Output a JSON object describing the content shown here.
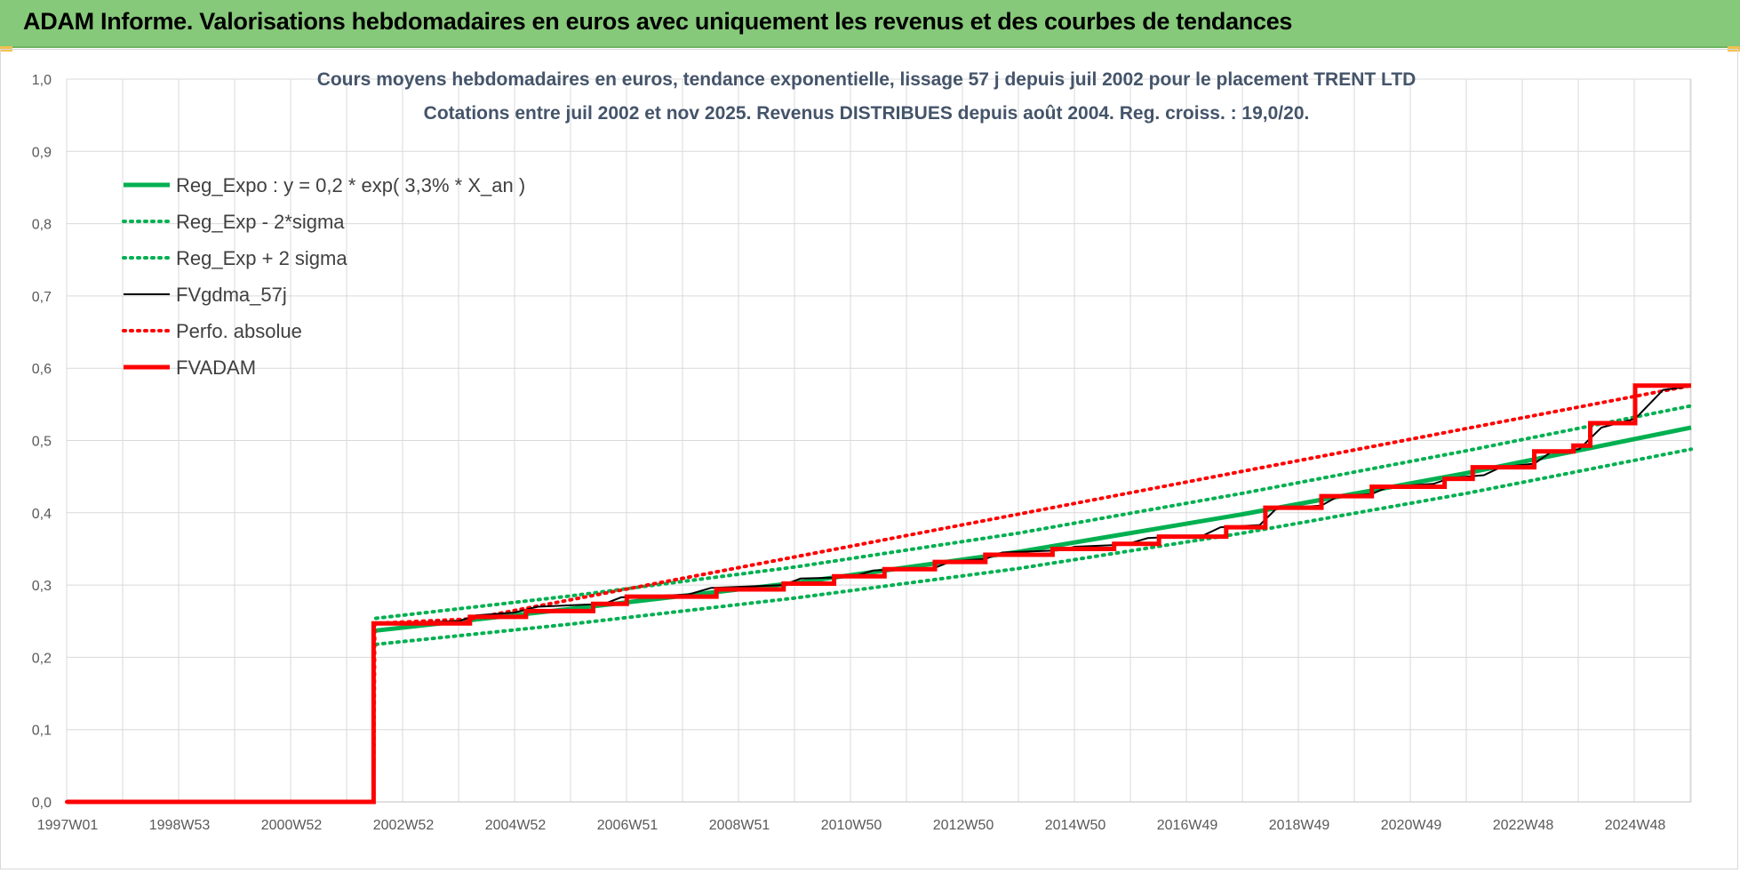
{
  "header": {
    "title": "ADAM Informe. Valorisations hebdomadaires en euros avec uniquement les revenus et des courbes de tendances"
  },
  "colors": {
    "banner": "#86c97a",
    "reg_expo": "#00b050",
    "fvgdma": "#000000",
    "fvadam": "#ff0000",
    "grid": "#d9d9d9"
  },
  "chart_data": {
    "type": "line",
    "title_line1": "Cours moyens hebdomadaires en euros, tendance exponentielle, lissage 57 j depuis juil 2002 pour le placement TRENT LTD",
    "title_line2": "Cotations entre juil 2002 et nov 2025. Revenus DISTRIBUES depuis août 2004. Reg. croiss. : 19,0/20.",
    "x_tick_labels": [
      "1997W01",
      "1998W53",
      "2000W52",
      "2002W52",
      "2004W52",
      "2006W51",
      "2008W51",
      "2010W50",
      "2012W50",
      "2014W50",
      "2016W49",
      "2018W49",
      "2020W49",
      "2022W48",
      "2024W48"
    ],
    "y_tick_labels": [
      "0,0",
      "0,1",
      "0,2",
      "0,3",
      "0,4",
      "0,5",
      "0,6",
      "0,7",
      "0,8",
      "0,9",
      "1,0"
    ],
    "ylim": [
      0,
      1
    ],
    "xlim": [
      1997.0,
      2026.0
    ],
    "grid": true,
    "legend_position": "top-left",
    "series": [
      {
        "name": "Reg_Expo : y = 0,2 * exp( 3,3% *  X_an )",
        "style": "solid-thick",
        "color": "#00b050",
        "points": [
          [
            2002.52,
            0.237
          ],
          [
            2006.0,
            0.267
          ],
          [
            2010.0,
            0.303
          ],
          [
            2014.0,
            0.346
          ],
          [
            2018.0,
            0.398
          ],
          [
            2022.0,
            0.455
          ],
          [
            2026.0,
            0.518
          ]
        ]
      },
      {
        "name": "Reg_Exp - 2*sigma",
        "style": "dotted",
        "color": "#00b050",
        "points": [
          [
            2002.52,
            0.218
          ],
          [
            2006.0,
            0.246
          ],
          [
            2010.0,
            0.282
          ],
          [
            2014.0,
            0.323
          ],
          [
            2018.0,
            0.372
          ],
          [
            2022.0,
            0.427
          ],
          [
            2026.0,
            0.488
          ]
        ]
      },
      {
        "name": "Reg_Exp + 2 sigma",
        "style": "dotted",
        "color": "#00b050",
        "points": [
          [
            2002.52,
            0.254
          ],
          [
            2006.0,
            0.285
          ],
          [
            2010.0,
            0.325
          ],
          [
            2014.0,
            0.372
          ],
          [
            2018.0,
            0.427
          ],
          [
            2022.0,
            0.486
          ],
          [
            2026.0,
            0.548
          ]
        ]
      },
      {
        "name": "FVgdma_57j",
        "style": "solid",
        "color": "#000000",
        "points": [
          [
            1997.0,
            0.0
          ],
          [
            2002.48,
            0.0
          ],
          [
            2002.5,
            0.247
          ],
          [
            2004.0,
            0.25
          ],
          [
            2004.3,
            0.258
          ],
          [
            2005.0,
            0.262
          ],
          [
            2005.4,
            0.27
          ],
          [
            2006.6,
            0.274
          ],
          [
            2006.9,
            0.283
          ],
          [
            2008.1,
            0.287
          ],
          [
            2008.5,
            0.296
          ],
          [
            2009.8,
            0.3
          ],
          [
            2010.1,
            0.309
          ],
          [
            2011.0,
            0.311
          ],
          [
            2011.4,
            0.32
          ],
          [
            2012.5,
            0.324
          ],
          [
            2012.8,
            0.333
          ],
          [
            2013.4,
            0.336
          ],
          [
            2013.7,
            0.345
          ],
          [
            2014.7,
            0.348
          ],
          [
            2015.0,
            0.353
          ],
          [
            2015.9,
            0.356
          ],
          [
            2016.3,
            0.365
          ],
          [
            2017.3,
            0.369
          ],
          [
            2017.6,
            0.38
          ],
          [
            2018.3,
            0.383
          ],
          [
            2018.6,
            0.406
          ],
          [
            2019.4,
            0.41
          ],
          [
            2019.7,
            0.423
          ],
          [
            2020.3,
            0.426
          ],
          [
            2020.6,
            0.436
          ],
          [
            2021.4,
            0.44
          ],
          [
            2021.7,
            0.448
          ],
          [
            2022.3,
            0.452
          ],
          [
            2022.6,
            0.463
          ],
          [
            2023.2,
            0.468
          ],
          [
            2023.5,
            0.484
          ],
          [
            2024.0,
            0.488
          ],
          [
            2024.4,
            0.518
          ],
          [
            2025.0,
            0.53
          ],
          [
            2025.5,
            0.57
          ],
          [
            2026.0,
            0.575
          ]
        ]
      },
      {
        "name": "Perfo. absolue",
        "style": "dotted",
        "color": "#ff0000",
        "points": [
          [
            1997.0,
            0.0
          ],
          [
            2002.48,
            0.0
          ],
          [
            2002.5,
            0.247
          ],
          [
            2004.2,
            0.253
          ],
          [
            2026.0,
            0.576
          ]
        ]
      },
      {
        "name": "FVADAM",
        "style": "step-thick",
        "color": "#ff0000",
        "points": [
          [
            1997.0,
            0.0
          ],
          [
            2002.48,
            0.0
          ],
          [
            2002.48,
            0.247
          ],
          [
            2004.2,
            0.247
          ],
          [
            2004.2,
            0.256
          ],
          [
            2005.2,
            0.256
          ],
          [
            2005.2,
            0.264
          ],
          [
            2006.4,
            0.264
          ],
          [
            2006.4,
            0.274
          ],
          [
            2007.0,
            0.274
          ],
          [
            2007.0,
            0.284
          ],
          [
            2008.6,
            0.284
          ],
          [
            2008.6,
            0.294
          ],
          [
            2009.8,
            0.294
          ],
          [
            2009.8,
            0.302
          ],
          [
            2010.7,
            0.302
          ],
          [
            2010.7,
            0.312
          ],
          [
            2011.6,
            0.312
          ],
          [
            2011.6,
            0.322
          ],
          [
            2012.5,
            0.322
          ],
          [
            2012.5,
            0.332
          ],
          [
            2013.4,
            0.332
          ],
          [
            2013.4,
            0.342
          ],
          [
            2014.6,
            0.342
          ],
          [
            2014.6,
            0.35
          ],
          [
            2015.7,
            0.35
          ],
          [
            2015.7,
            0.357
          ],
          [
            2016.5,
            0.357
          ],
          [
            2016.5,
            0.367
          ],
          [
            2017.7,
            0.367
          ],
          [
            2017.7,
            0.38
          ],
          [
            2018.4,
            0.38
          ],
          [
            2018.4,
            0.407
          ],
          [
            2019.4,
            0.407
          ],
          [
            2019.4,
            0.423
          ],
          [
            2020.3,
            0.423
          ],
          [
            2020.3,
            0.436
          ],
          [
            2021.6,
            0.436
          ],
          [
            2021.6,
            0.447
          ],
          [
            2022.1,
            0.447
          ],
          [
            2022.1,
            0.463
          ],
          [
            2023.2,
            0.463
          ],
          [
            2023.2,
            0.485
          ],
          [
            2023.9,
            0.485
          ],
          [
            2023.9,
            0.493
          ],
          [
            2024.2,
            0.493
          ],
          [
            2024.2,
            0.524
          ],
          [
            2025.0,
            0.524
          ],
          [
            2025.0,
            0.576
          ],
          [
            2026.0,
            0.576
          ]
        ]
      }
    ]
  }
}
